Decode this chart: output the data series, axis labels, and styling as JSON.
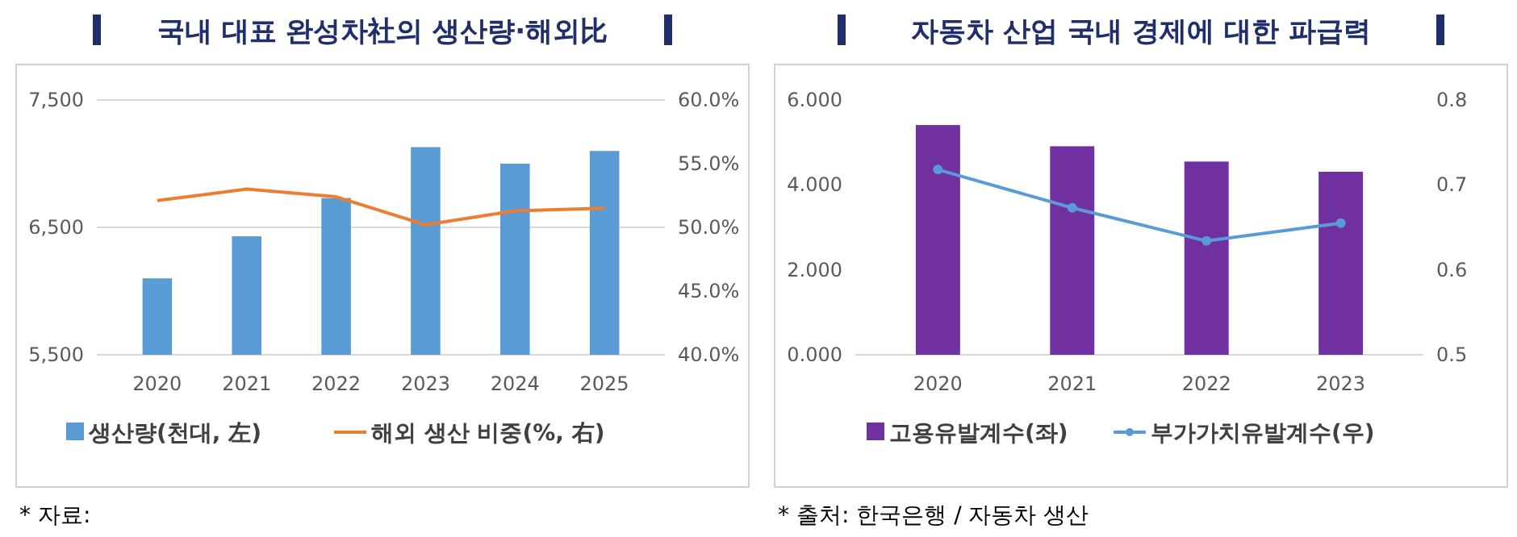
{
  "chart_data": [
    {
      "type": "bar",
      "title": "국내 대표 완성차社의 생산량·해외比",
      "categories": [
        "2020",
        "2021",
        "2022",
        "2023",
        "2024",
        "2025"
      ],
      "series": [
        {
          "name": "생산량(천대, 左)",
          "color": "#5b9bd5",
          "values": [
            6100,
            6430,
            6730,
            7130,
            7000,
            7100
          ]
        },
        {
          "name": "해외 생산 비중(%, 右)",
          "type": "line",
          "axis": "y2",
          "color": "#ed7d31",
          "values": [
            52.1,
            53.0,
            52.4,
            50.2,
            51.3,
            51.5
          ]
        }
      ],
      "ylim": [
        5500,
        7500
      ],
      "yticks": [
        {
          "value": 5500,
          "label": "5,500"
        },
        {
          "value": 6500,
          "label": "6,500"
        },
        {
          "value": 7500,
          "label": "7,500"
        }
      ],
      "y2lim": [
        40,
        60
      ],
      "y2ticks": [
        {
          "value": 40,
          "label": "40.0%"
        },
        {
          "value": 45,
          "label": "45.0%"
        },
        {
          "value": 50,
          "label": "50.0%"
        },
        {
          "value": 55,
          "label": "55.0%"
        },
        {
          "value": 60,
          "label": "60.0%"
        }
      ],
      "grid": "y",
      "legend": "bottom",
      "annotations": [
        "* 자료:"
      ]
    },
    {
      "type": "bar",
      "title": "자동차 산업 국내 경제에 대한 파급력",
      "categories": [
        "2020",
        "2021",
        "2022",
        "2023"
      ],
      "series": [
        {
          "name": "고용유발계수(좌)",
          "color": "#7030a0",
          "values": [
            5.41,
            4.91,
            4.55,
            4.31
          ]
        },
        {
          "name": "부가가치유발계수(우)",
          "type": "line",
          "axis": "y2",
          "color": "#5b9bd5",
          "values": [
            0.718,
            0.673,
            0.634,
            0.655
          ]
        }
      ],
      "ylim": [
        0,
        6
      ],
      "yticks": [
        {
          "value": 0,
          "label": "0.000"
        },
        {
          "value": 2,
          "label": "2.000"
        },
        {
          "value": 4,
          "label": "4.000"
        },
        {
          "value": 6,
          "label": "6.000"
        }
      ],
      "y2lim": [
        0.5,
        0.8
      ],
      "y2ticks": [
        0.5,
        0.6,
        0.7,
        0.8
      ],
      "marker": "circle",
      "legend": "bottom",
      "annotations": [
        "* 출처: 한국은행 / 자동차 생산"
      ]
    }
  ]
}
